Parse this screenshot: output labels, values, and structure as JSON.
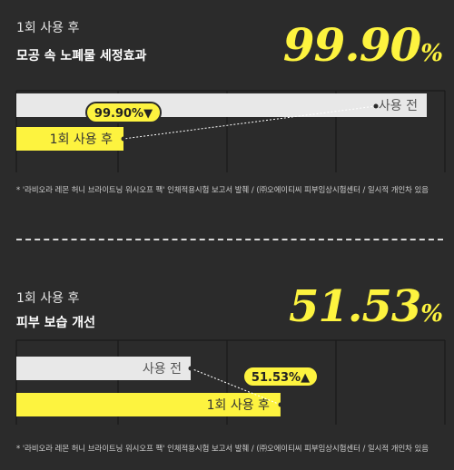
{
  "sections": [
    {
      "subtitle": "1회 사용 후",
      "title": "모공 속 노폐물 세정효과",
      "headline_number": "99.90",
      "headline_unit": "%",
      "footnote": "* '라비오라 레몬 허니 브라이트닝 워시오프 팩' 인체적용시험 보고서 발췌 / (㈜오에이티씨 피부임상시험센터 / 일시적 개인차 있음",
      "chart_data": {
        "type": "bar",
        "orientation": "horizontal",
        "categories": [
          "사용 전",
          "1회 사용 후"
        ],
        "values": [
          100,
          0.1
        ],
        "unit": "relative %",
        "change_label": "99.90%▼",
        "colors": {
          "before": "#e8e8e8",
          "after": "#fdf33f"
        },
        "grid": true
      }
    },
    {
      "subtitle": "1회 사용 후",
      "title": "피부 보습 개선",
      "headline_number": "51.53",
      "headline_unit": "%",
      "footnote": "* '라비오라 레몬 허니 브라이트닝 워시오프 팩' 인체적용시험 보고서 발췌 / (㈜오에이티씨 피부임상시험센터 / 일시적 개인차 있음",
      "chart_data": {
        "type": "bar",
        "orientation": "horizontal",
        "categories": [
          "사용 전",
          "1회 사용 후"
        ],
        "values": [
          100,
          151.53
        ],
        "unit": "relative %",
        "change_label": "51.53%▲",
        "colors": {
          "before": "#e8e8e8",
          "after": "#fdf33f"
        },
        "grid": true
      }
    }
  ]
}
